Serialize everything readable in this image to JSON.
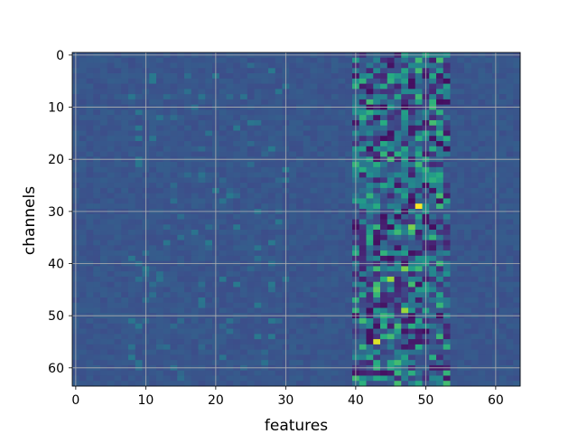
{
  "chart_data": {
    "type": "heatmap",
    "title": "",
    "xlabel": "features",
    "ylabel": "channels",
    "x_range": [
      0,
      63
    ],
    "y_range": [
      0,
      63
    ],
    "y_inverted": true,
    "x_ticks": [
      "0",
      "10",
      "20",
      "30",
      "40",
      "50",
      "60"
    ],
    "y_ticks": [
      "0",
      "10",
      "20",
      "30",
      "40",
      "50",
      "60"
    ],
    "grid": true,
    "colormap": "viridis",
    "rows": 64,
    "cols": 64,
    "active_columns": [
      40,
      53
    ],
    "hotspots": [
      {
        "row": 29,
        "col": 49,
        "value": 1.0
      },
      {
        "row": 55,
        "col": 43,
        "value": 0.95
      },
      {
        "row": 49,
        "col": 47,
        "value": 0.85
      },
      {
        "row": 43,
        "col": 45,
        "value": 0.85
      },
      {
        "row": 41,
        "col": 47,
        "value": 0.8
      },
      {
        "row": 33,
        "col": 48,
        "value": 0.8
      },
      {
        "row": 45,
        "col": 43,
        "value": 0.75
      },
      {
        "row": 52,
        "col": 46,
        "value": 0.7
      },
      {
        "row": 38,
        "col": 44,
        "value": 0.65
      },
      {
        "row": 4,
        "col": 51,
        "value": 0.6
      },
      {
        "row": 62,
        "col": 43,
        "value": 0.6
      },
      {
        "row": 0,
        "col": 47,
        "value": 0.55
      },
      {
        "row": 23,
        "col": 42,
        "value": 0.5
      },
      {
        "row": 25,
        "col": 45,
        "value": 0.5
      },
      {
        "row": 13,
        "col": 47,
        "value": 0.45
      }
    ]
  }
}
